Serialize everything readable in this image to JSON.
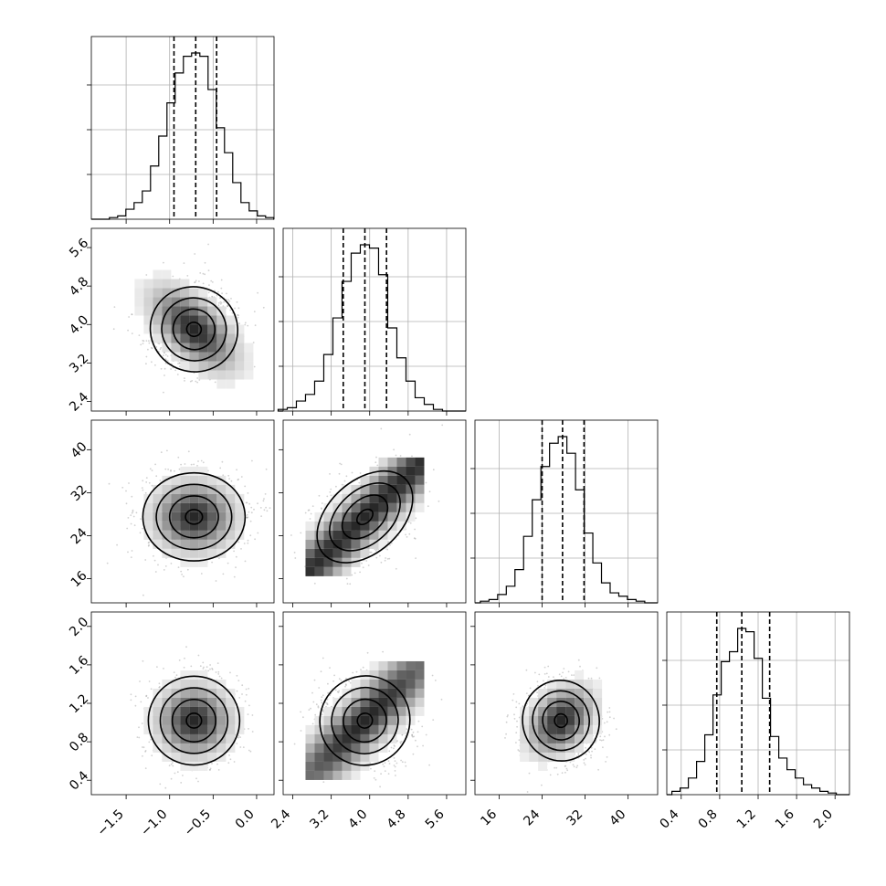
{
  "chart_data": {
    "type": "corner",
    "grid": true,
    "parameters": [
      {
        "index": 0,
        "range": [
          -1.9,
          0.2
        ],
        "ticks": [
          -1.5,
          -1.0,
          -0.5,
          0.0
        ],
        "tick_labels": [
          "−1.5",
          "−1.0",
          "−0.5",
          "0.0"
        ],
        "quantiles": [
          -0.95,
          -0.7,
          -0.46
        ],
        "peak": -0.7,
        "hist_counts": [
          1,
          2,
          6,
          10,
          17,
          32,
          50,
          70,
          88,
          98,
          100,
          98,
          78,
          55,
          40,
          22,
          10,
          5,
          2,
          1
        ]
      },
      {
        "index": 1,
        "range": [
          2.2,
          6.0
        ],
        "ticks": [
          2.4,
          3.2,
          4.0,
          4.8,
          5.6
        ],
        "tick_labels": [
          "2.4",
          "3.2",
          "4.0",
          "4.8",
          "5.6"
        ],
        "quantiles": [
          3.45,
          3.9,
          4.35
        ],
        "peak": 3.9,
        "hist_counts": [
          1,
          2,
          6,
          10,
          18,
          34,
          56,
          78,
          95,
          100,
          98,
          82,
          50,
          32,
          18,
          8,
          4,
          1
        ]
      },
      {
        "index": 2,
        "range": [
          11.5,
          45.5
        ],
        "ticks": [
          16,
          24,
          32,
          40
        ],
        "tick_labels": [
          "16",
          "24",
          "32",
          "40"
        ],
        "quantiles": [
          24.0,
          27.8,
          31.8
        ],
        "peak": 27.8,
        "hist_counts": [
          1,
          2,
          5,
          10,
          20,
          40,
          62,
          82,
          96,
          100,
          90,
          68,
          42,
          24,
          12,
          6,
          4,
          2,
          1
        ]
      },
      {
        "index": 3,
        "range": [
          0.25,
          2.15
        ],
        "ticks": [
          0.4,
          0.8,
          1.2,
          1.6,
          2.0
        ],
        "tick_labels": [
          "0.4",
          "0.8",
          "1.2",
          "1.6",
          "2.0"
        ],
        "quantiles": [
          0.77,
          1.03,
          1.32
        ],
        "peak": 1.03,
        "hist_counts": [
          2,
          4,
          10,
          20,
          36,
          60,
          80,
          86,
          100,
          98,
          82,
          58,
          35,
          22,
          15,
          10,
          6,
          4,
          2,
          1
        ]
      }
    ],
    "pairs": [
      {
        "x": 0,
        "y": 1,
        "center": [
          -0.72,
          3.9
        ],
        "spread": [
          0.24,
          0.42
        ],
        "angle_deg": -18
      },
      {
        "x": 0,
        "y": 2,
        "center": [
          -0.72,
          27.5
        ],
        "spread": [
          0.28,
          3.9
        ],
        "angle_deg": 0
      },
      {
        "x": 1,
        "y": 2,
        "center": [
          3.9,
          27.5
        ],
        "spread": [
          0.55,
          3.2
        ],
        "angle_deg": 42
      },
      {
        "x": 0,
        "y": 3,
        "center": [
          -0.72,
          1.02
        ],
        "spread": [
          0.25,
          0.22
        ],
        "angle_deg": 0
      },
      {
        "x": 1,
        "y": 3,
        "center": [
          3.9,
          1.02
        ],
        "spread": [
          0.45,
          0.22
        ],
        "angle_deg": 35
      },
      {
        "x": 2,
        "y": 3,
        "center": [
          27.5,
          1.02
        ],
        "spread": [
          3.4,
          0.2
        ],
        "angle_deg": 10
      }
    ]
  }
}
